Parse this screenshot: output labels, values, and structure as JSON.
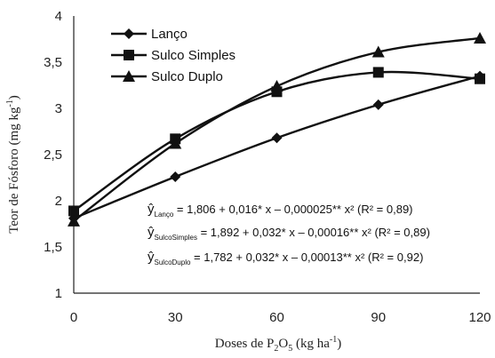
{
  "chart_data": {
    "type": "line",
    "ylabel_main": "Teor de Fósforo (mg kg",
    "ylabel_sup": "-1",
    "ylabel_close": ")",
    "xlabel_pre": "Doses de P",
    "xlabel_sub1": "2",
    "xlabel_mid": "O",
    "xlabel_sub2": "5",
    "xlabel_unit": " (kg ha",
    "xlabel_sup": "-1",
    "xlabel_close": ")",
    "xlim": [
      0,
      120
    ],
    "ylim": [
      1,
      4
    ],
    "xticks": [
      "0",
      "30",
      "60",
      "90",
      "120"
    ],
    "yticks": [
      "1",
      "1,5",
      "2",
      "2,5",
      "3",
      "3,5",
      "4"
    ],
    "grid": false,
    "legend_position": "top-left",
    "x": [
      0,
      30,
      60,
      90,
      120
    ],
    "series": [
      {
        "name": "Lanço",
        "marker": "diamond",
        "values": [
          1.81,
          2.26,
          2.68,
          3.04,
          3.35
        ]
      },
      {
        "name": "Sulco Simples",
        "marker": "square",
        "values": [
          1.89,
          2.67,
          3.18,
          3.39,
          3.32
        ]
      },
      {
        "name": "Sulco Duplo",
        "marker": "triangle",
        "values": [
          1.78,
          2.62,
          3.24,
          3.61,
          3.76
        ]
      }
    ],
    "equations": [
      {
        "sub": "Lanço",
        "expr": "= 1,806 + 0,016* x – 0,000025** x² (R² = 0,89)"
      },
      {
        "sub": "SulcoSimples",
        "expr": "= 1,892 + 0,032* x – 0,00016** x² (R² = 0,89)"
      },
      {
        "sub": "SulcoDuplo",
        "expr": "= 1,782 + 0,032* x – 0,00013** x² (R² = 0,92)"
      }
    ]
  }
}
